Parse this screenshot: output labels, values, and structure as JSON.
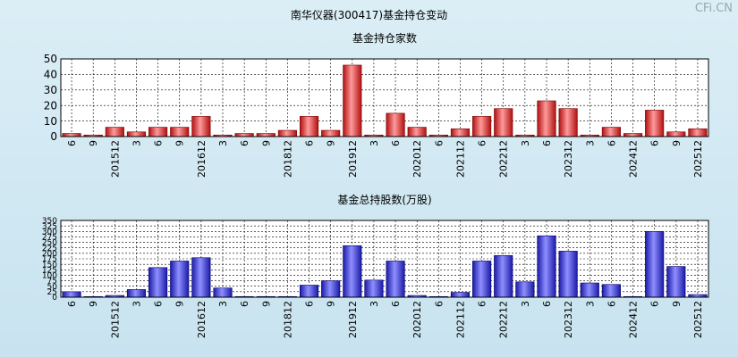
{
  "page": {
    "title": "南华仪器(300417)基金持仓变动",
    "watermark": "CFi.CN"
  },
  "chart_data": [
    {
      "type": "bar",
      "title": "基金持仓家数",
      "ylim": [
        0,
        50
      ],
      "yticks": [
        0,
        10,
        20,
        30,
        40,
        50
      ],
      "grid": true,
      "bar_color": "#e02b2b",
      "categories": [
        "6",
        "9",
        "201512",
        "3",
        "6",
        "9",
        "201612",
        "3",
        "6",
        "9",
        "201812",
        "6",
        "9",
        "201912",
        "3",
        "6",
        "202012",
        "6",
        "202112",
        "6",
        "202212",
        "3",
        "6",
        "202312",
        "3",
        "6",
        "202412",
        "6",
        "9",
        "202512"
      ],
      "values": [
        2,
        1,
        6,
        3,
        6,
        6,
        13,
        1,
        2,
        2,
        4,
        13,
        4,
        46,
        1,
        15,
        6,
        1,
        5,
        13,
        18,
        1,
        23,
        18,
        1,
        6,
        2,
        17,
        3,
        5
      ]
    },
    {
      "type": "bar",
      "title": "基金总持股数(万股)",
      "ylim": [
        0,
        350
      ],
      "yticks": [
        0,
        25,
        50,
        75,
        100,
        125,
        150,
        175,
        200,
        225,
        250,
        275,
        300,
        325,
        350
      ],
      "grid": true,
      "bar_color": "#3030d8",
      "categories": [
        "6",
        "9",
        "201512",
        "3",
        "6",
        "9",
        "201612",
        "3",
        "6",
        "9",
        "201812",
        "6",
        "9",
        "201912",
        "3",
        "6",
        "202012",
        "6",
        "202112",
        "6",
        "202212",
        "3",
        "6",
        "202312",
        "3",
        "6",
        "202412",
        "6",
        "9",
        "202512"
      ],
      "values": [
        25,
        3,
        8,
        35,
        135,
        165,
        180,
        42,
        3,
        3,
        3,
        55,
        75,
        235,
        78,
        165,
        8,
        3,
        22,
        165,
        190,
        70,
        280,
        210,
        65,
        58,
        3,
        300,
        140,
        12
      ]
    }
  ]
}
